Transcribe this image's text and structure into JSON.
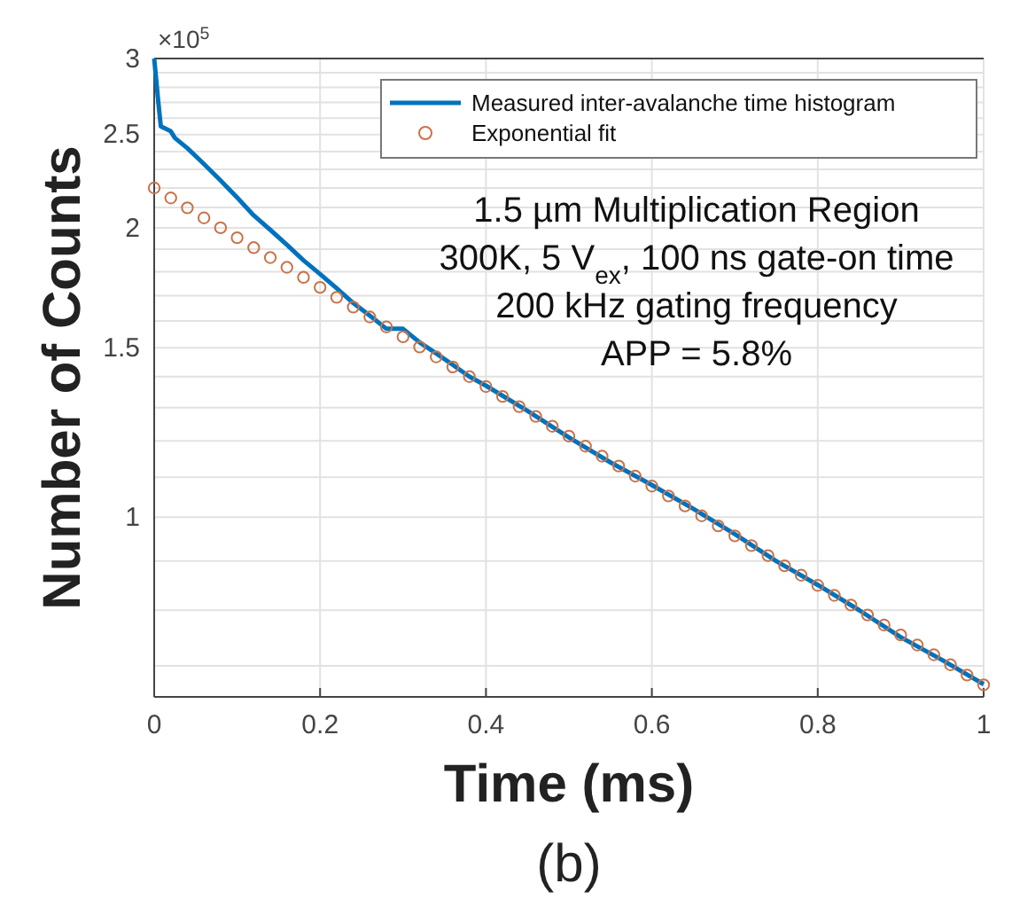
{
  "chart_data": {
    "type": "line",
    "xlabel": "Time (ms)",
    "ylabel": "Number of Counts",
    "log": "y",
    "grid": true,
    "legend": "top right",
    "xlim": [
      0,
      1
    ],
    "xticks": [
      0,
      0.2,
      0.4,
      0.6,
      0.8,
      1
    ],
    "ylim": [
      0.65,
      3
    ],
    "yticks": [
      {
        "value": 0.7,
        "label": null
      },
      {
        "value": 0.8,
        "label": null
      },
      {
        "value": 0.9,
        "label": null
      },
      1,
      {
        "value": 1.1,
        "label": null
      },
      {
        "value": 1.2,
        "label": null
      },
      {
        "value": 1.3,
        "label": null
      },
      {
        "value": 1.4,
        "label": null
      },
      1.5,
      {
        "value": 1.6,
        "label": null
      },
      {
        "value": 1.7,
        "label": null
      },
      {
        "value": 1.8,
        "label": null
      },
      {
        "value": 1.9,
        "label": null
      },
      2,
      {
        "value": 2.1,
        "label": null
      },
      {
        "value": 2.2,
        "label": null
      },
      {
        "value": 2.3,
        "label": null
      },
      {
        "value": 2.4,
        "label": null
      },
      2.5,
      {
        "value": 2.6,
        "label": null
      },
      {
        "value": 2.7,
        "label": null
      },
      {
        "value": 2.8,
        "label": null
      },
      {
        "value": 2.9,
        "label": null
      },
      3
    ],
    "annotations": [
      "×10$^{5}$",
      "1.5 µm Multiplication Region",
      "300K, 5 V$_{ex}$, 100 ns gate-on time",
      "200 kHz gating frequency",
      "APP = 5.8%",
      "(b)"
    ],
    "series": [
      {
        "name": "Measured inter-avalanche time histogram",
        "color": "#0072bd",
        "line_style": "solid",
        "marker": "none",
        "x": [
          0,
          0.005,
          0.008,
          0.02,
          0.025,
          0.04,
          0.06,
          0.08,
          0.1,
          0.12,
          0.14,
          0.16,
          0.18,
          0.2,
          0.22,
          0.24,
          0.26,
          0.28,
          0.3,
          0.32,
          0.34,
          0.36,
          0.38,
          0.4,
          0.45,
          0.5,
          0.55,
          0.6,
          0.65,
          0.7,
          0.75,
          0.8,
          0.85,
          0.9,
          0.95,
          1
        ],
        "values": [
          3,
          2.7,
          2.55,
          2.52,
          2.48,
          2.42,
          2.33,
          2.24,
          2.15,
          2.06,
          1.99,
          1.92,
          1.85,
          1.79,
          1.73,
          1.67,
          1.62,
          1.57,
          1.57,
          1.52,
          1.48,
          1.44,
          1.4,
          1.37,
          1.29,
          1.21,
          1.14,
          1.08,
          1.02,
          0.96,
          0.9,
          0.85,
          0.8,
          0.75,
          0.71,
          0.67
        ]
      },
      {
        "name": "Exponential fit",
        "type": "scatter",
        "color": "#c8734a",
        "marker": "circle",
        "x": [
          0,
          0.02,
          0.04,
          0.06,
          0.08,
          0.1,
          0.12,
          0.14,
          0.16,
          0.18,
          0.2,
          0.22,
          0.24,
          0.26,
          0.28,
          0.3,
          0.32,
          0.34,
          0.36,
          0.38,
          0.4,
          0.42,
          0.44,
          0.46,
          0.48,
          0.5,
          0.52,
          0.54,
          0.56,
          0.58,
          0.6,
          0.62,
          0.64,
          0.66,
          0.68,
          0.7,
          0.72,
          0.74,
          0.76,
          0.78,
          0.8,
          0.82,
          0.84,
          0.86,
          0.88,
          0.9,
          0.92,
          0.94,
          0.96,
          0.98,
          1
        ],
        "values": [
          2.2,
          2.148,
          2.098,
          2.048,
          2,
          1.953,
          1.907,
          1.862,
          1.819,
          1.776,
          1.734,
          1.693,
          1.654,
          1.615,
          1.577,
          1.54,
          1.503,
          1.468,
          1.433,
          1.4,
          1.367,
          1.335,
          1.303,
          1.273,
          1.243,
          1.214,
          1.185,
          1.157,
          1.13,
          1.103,
          1.077,
          1.052,
          1.027,
          1.003,
          0.979,
          0.956,
          0.934,
          0.912,
          0.89,
          0.87,
          0.849,
          0.829,
          0.81,
          0.791,
          0.772,
          0.754,
          0.736,
          0.719,
          0.702,
          0.685,
          0.669
        ]
      }
    ]
  }
}
